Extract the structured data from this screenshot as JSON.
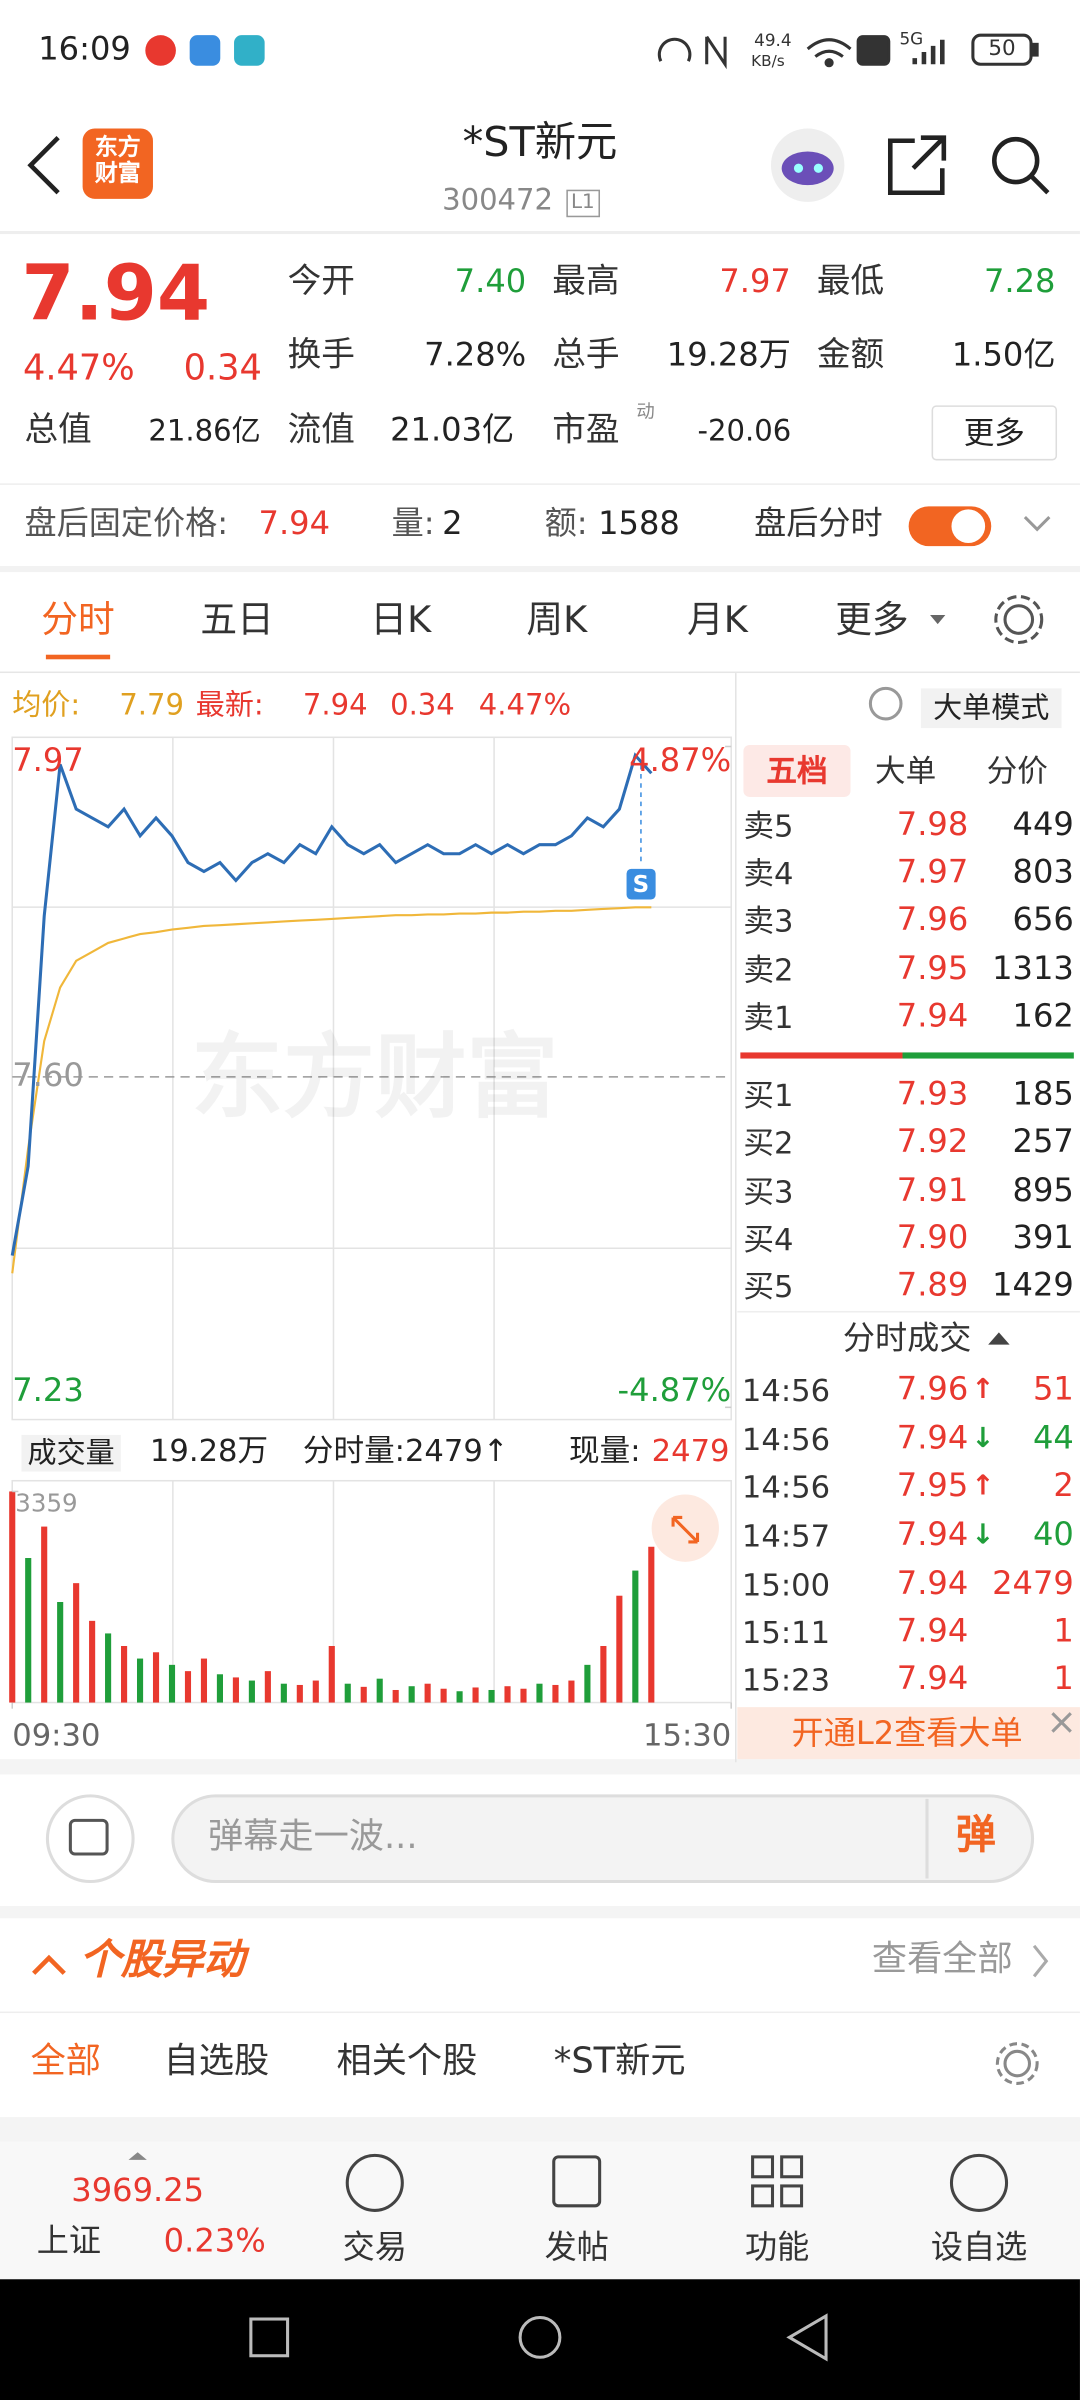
{
  "status_bar": {
    "time": "16:09",
    "speed": "49.4",
    "speed_unit": "KB/s",
    "network": "5G",
    "battery": "50"
  },
  "header": {
    "logo": "东方财富",
    "title": "*ST新元",
    "code": "300472",
    "level": "L1"
  },
  "quote": {
    "price": "7.94",
    "change_pct": "4.47%",
    "change": "0.34",
    "fields": [
      [
        "今开",
        "7.40"
      ],
      [
        "最高",
        "7.97"
      ],
      [
        "最低",
        "7.28"
      ],
      [
        "换手",
        "7.28%"
      ],
      [
        "总手",
        "19.28万"
      ],
      [
        "金额",
        "1.50亿"
      ],
      [
        "总值",
        "21.86亿"
      ],
      [
        "流值",
        "21.03亿"
      ],
      [
        "市盈",
        "-20.06"
      ]
    ],
    "pe_tag": "动",
    "more": "更多"
  },
  "after_hours": {
    "price_label": "盘后固定价格:",
    "price": "7.94",
    "volume_label": "量:",
    "volume": "2",
    "amount_label": "额:",
    "amount": "1588",
    "toggle_label": "盘后分时"
  },
  "tabs": {
    "items": [
      "分时",
      "五日",
      "日K",
      "周K",
      "月K",
      "更多"
    ]
  },
  "chart_info": {
    "avg_label": "均价:",
    "avg": "7.79",
    "last_label": "最新:",
    "last": "7.94",
    "change": "0.34",
    "change_pct": "4.47%",
    "mode_button": "大单模式",
    "watermark": "东方财富",
    "marker": "S"
  },
  "chart_data": [
    {
      "type": "line",
      "x": [
        0,
        6,
        12,
        18,
        24,
        30,
        36,
        42,
        48,
        54,
        60,
        66,
        72,
        78,
        84,
        90,
        96,
        102,
        108,
        114,
        120,
        126,
        132,
        138,
        144,
        150,
        156,
        162,
        168,
        174,
        180,
        186,
        192,
        198,
        204,
        210,
        216,
        222,
        228,
        234,
        240
      ],
      "xlim": [
        0,
        270
      ],
      "xticks": [
        {
          "value": 0,
          "label": "09:30"
        },
        {
          "value": 270,
          "label": "15:30"
        }
      ],
      "ylim": [
        7.23,
        7.97
      ],
      "yticks": [
        7.97,
        {
          "value": 7.6,
          "label": "7.60"
        },
        7.23
      ],
      "y2lim": [
        -4.87,
        4.87
      ],
      "y2ticks": [
        {
          "value": 4.87,
          "label": "4.87%"
        },
        {
          "value": -4.87,
          "label": "-4.87%"
        }
      ],
      "series": [
        {
          "color": "#2d6db5",
          "values": [
            7.4,
            7.5,
            7.78,
            7.95,
            7.9,
            7.89,
            7.88,
            7.9,
            7.87,
            7.89,
            7.87,
            7.84,
            7.83,
            7.84,
            7.82,
            7.84,
            7.85,
            7.84,
            7.86,
            7.85,
            7.88,
            7.86,
            7.85,
            7.86,
            7.84,
            7.85,
            7.86,
            7.85,
            7.85,
            7.86,
            7.85,
            7.86,
            7.85,
            7.86,
            7.86,
            7.87,
            7.89,
            7.88,
            7.9,
            7.96,
            7.94
          ]
        },
        {
          "color": "#f0b73a",
          "values": [
            7.38,
            7.52,
            7.64,
            7.7,
            7.73,
            7.74,
            7.75,
            7.755,
            7.76,
            7.762,
            7.765,
            7.767,
            7.769,
            7.77,
            7.771,
            7.772,
            7.773,
            7.774,
            7.775,
            7.776,
            7.777,
            7.778,
            7.779,
            7.78,
            7.781,
            7.781,
            7.782,
            7.782,
            7.783,
            7.783,
            7.784,
            7.784,
            7.785,
            7.785,
            7.786,
            7.786,
            7.787,
            7.788,
            7.789,
            7.79,
            7.79
          ]
        }
      ]
    },
    {
      "type": "bar",
      "x": [
        0,
        6,
        12,
        18,
        24,
        30,
        36,
        42,
        48,
        54,
        60,
        66,
        72,
        78,
        84,
        90,
        96,
        102,
        108,
        114,
        120,
        126,
        132,
        138,
        144,
        150,
        156,
        162,
        168,
        174,
        180,
        186,
        192,
        198,
        204,
        210,
        216,
        222,
        228,
        234,
        240
      ],
      "xlim": [
        0,
        270
      ],
      "ylim": [
        0,
        3359
      ],
      "yticks": [
        3359
      ],
      "values": [
        3359,
        2300,
        2800,
        1600,
        1900,
        1300,
        1100,
        900,
        700,
        800,
        600,
        500,
        700,
        450,
        400,
        350,
        500,
        300,
        280,
        350,
        900,
        300,
        250,
        380,
        200,
        260,
        300,
        220,
        180,
        240,
        200,
        260,
        220,
        300,
        280,
        350,
        600,
        900,
        1700,
        2100,
        2479
      ],
      "colors": [
        "#e8382f",
        "#1f9e3a",
        "#e8382f",
        "#1f9e3a",
        "#e8382f",
        "#e8382f",
        "#1f9e3a",
        "#e8382f",
        "#1f9e3a",
        "#e8382f",
        "#1f9e3a",
        "#e8382f",
        "#e8382f",
        "#1f9e3a",
        "#e8382f",
        "#1f9e3a",
        "#e8382f",
        "#1f9e3a",
        "#e8382f",
        "#e8382f",
        "#e8382f",
        "#1f9e3a",
        "#e8382f",
        "#1f9e3a",
        "#e8382f",
        "#1f9e3a",
        "#e8382f",
        "#e8382f",
        "#1f9e3a",
        "#e8382f",
        "#1f9e3a",
        "#e8382f",
        "#e8382f",
        "#1f9e3a",
        "#e8382f",
        "#e8382f",
        "#1f9e3a",
        "#e8382f",
        "#e8382f",
        "#1f9e3a",
        "#e8382f"
      ]
    }
  ],
  "volume_info": {
    "selector": "成交量",
    "total": "19.28万",
    "tick_volume": "分时量:2479↑",
    "current_label": "现量:",
    "current": "2479"
  },
  "order_book": {
    "tabs": [
      "五档",
      "大单",
      "分价"
    ],
    "asks": [
      [
        "卖5",
        "7.98",
        "449"
      ],
      [
        "卖4",
        "7.97",
        "803"
      ],
      [
        "卖3",
        "7.96",
        "656"
      ],
      [
        "卖2",
        "7.95",
        "1313"
      ],
      [
        "卖1",
        "7.94",
        "162"
      ]
    ],
    "bids": [
      [
        "买1",
        "7.93",
        "185"
      ],
      [
        "买2",
        "7.92",
        "257"
      ],
      [
        "买3",
        "7.91",
        "895"
      ],
      [
        "买4",
        "7.90",
        "391"
      ],
      [
        "买5",
        "7.89",
        "1429"
      ]
    ]
  },
  "trades": {
    "title": "分时成交",
    "rows": [
      [
        "14:56",
        "7.96",
        "↑",
        "51"
      ],
      [
        "14:56",
        "7.94",
        "↓",
        "44"
      ],
      [
        "14:56",
        "7.95",
        "↑",
        "2"
      ],
      [
        "14:57",
        "7.94",
        "↓",
        "40"
      ],
      [
        "15:00",
        "7.94",
        "2479"
      ],
      [
        "15:11",
        "7.94",
        "1"
      ],
      [
        "15:23",
        "7.94",
        "1"
      ]
    ]
  },
  "l2_banner": "开通L2查看大单",
  "danmu": {
    "placeholder": "弹幕走一波...",
    "button": "弹"
  },
  "movement": {
    "title": "个股异动",
    "view_all": "查看全部",
    "filters": [
      "全部",
      "自选股",
      "相关个股",
      "*ST新元"
    ]
  },
  "bottom_bar": {
    "index_value": "3969.25",
    "index_name": "上证",
    "index_pct": "0.23%",
    "items": [
      "交易",
      "发帖",
      "功能",
      "设自选"
    ]
  }
}
